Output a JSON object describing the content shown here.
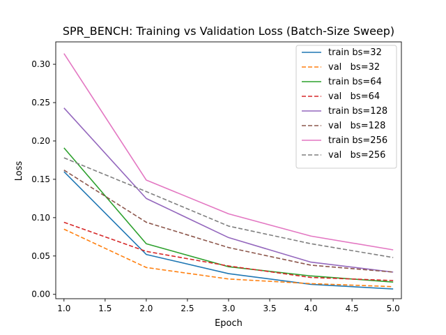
{
  "chart_data": {
    "type": "line",
    "title": "SPR_BENCH: Training vs Validation Loss (Batch-Size Sweep)",
    "xlabel": "Epoch",
    "ylabel": "Loss",
    "xlim": [
      0.9,
      5.1
    ],
    "ylim": [
      -0.0057,
      0.3292
    ],
    "xticks": [
      1.0,
      1.5,
      2.0,
      2.5,
      3.0,
      3.5,
      4.0,
      4.5,
      5.0
    ],
    "xtick_labels": [
      "1.0",
      "1.5",
      "2.0",
      "2.5",
      "3.0",
      "3.5",
      "4.0",
      "4.5",
      "5.0"
    ],
    "yticks": [
      0.0,
      0.05,
      0.1,
      0.15,
      0.2,
      0.25,
      0.3
    ],
    "ytick_labels": [
      "0.00",
      "0.05",
      "0.10",
      "0.15",
      "0.20",
      "0.25",
      "0.30"
    ],
    "grid": false,
    "legend_position": "top-right",
    "x": [
      1,
      2,
      3,
      4,
      5
    ],
    "series": [
      {
        "name": "train bs=32",
        "color": "#1f77b4",
        "dash": "solid",
        "values": [
          0.16,
          0.052,
          0.027,
          0.013,
          0.007
        ]
      },
      {
        "name": "val   bs=32",
        "color": "#ff7f0e",
        "dash": "dashed",
        "values": [
          0.085,
          0.035,
          0.02,
          0.014,
          0.01
        ]
      },
      {
        "name": "train bs=64",
        "color": "#2ca02c",
        "dash": "solid",
        "values": [
          0.191,
          0.066,
          0.036,
          0.024,
          0.016
        ]
      },
      {
        "name": "val   bs=64",
        "color": "#d62728",
        "dash": "dashed",
        "values": [
          0.094,
          0.056,
          0.037,
          0.022,
          0.018
        ]
      },
      {
        "name": "train bs=128",
        "color": "#9467bd",
        "dash": "solid",
        "values": [
          0.243,
          0.125,
          0.074,
          0.042,
          0.029
        ]
      },
      {
        "name": "val   bs=128",
        "color": "#8c564b",
        "dash": "dashed",
        "values": [
          0.162,
          0.094,
          0.061,
          0.038,
          0.029
        ]
      },
      {
        "name": "train bs=256",
        "color": "#e377c2",
        "dash": "solid",
        "values": [
          0.314,
          0.149,
          0.105,
          0.076,
          0.058
        ]
      },
      {
        "name": "val   bs=256",
        "color": "#7f7f7f",
        "dash": "dashed",
        "values": [
          0.178,
          0.134,
          0.089,
          0.066,
          0.048
        ]
      }
    ]
  }
}
